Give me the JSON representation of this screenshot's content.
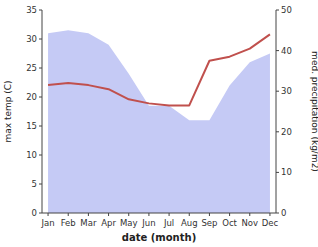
{
  "chart_data": {
    "type": "line",
    "xlabel": "date (month)",
    "ylabel": "max temp (C)",
    "y2label": "med. precipitation (kg/m2)",
    "categories": [
      "Jan",
      "Feb",
      "Mar",
      "Apr",
      "May",
      "Jun",
      "Jul",
      "Aug",
      "Sep",
      "Oct",
      "Nov",
      "Dec"
    ],
    "series": [
      {
        "type": "area",
        "color": "#c5caf5",
        "values": [
          31.0,
          31.5,
          31.0,
          29.0,
          24.0,
          18.5,
          18.5,
          16.0,
          16.0,
          22.0,
          26.0,
          27.5
        ]
      },
      {
        "type": "line",
        "color": "#c0504d",
        "axis": "y2",
        "values": [
          31.5,
          32.0,
          31.5,
          30.5,
          28.0,
          27.0,
          26.5,
          26.5,
          37.5,
          38.5,
          40.5,
          44.0
        ]
      }
    ],
    "ylim": [
      0,
      35
    ],
    "yticks": [
      0,
      5,
      10,
      15,
      20,
      25,
      30,
      35
    ],
    "y2lim": [
      0,
      50
    ],
    "y2ticks": [
      0,
      10,
      20,
      30,
      40,
      50
    ],
    "grid": false
  }
}
